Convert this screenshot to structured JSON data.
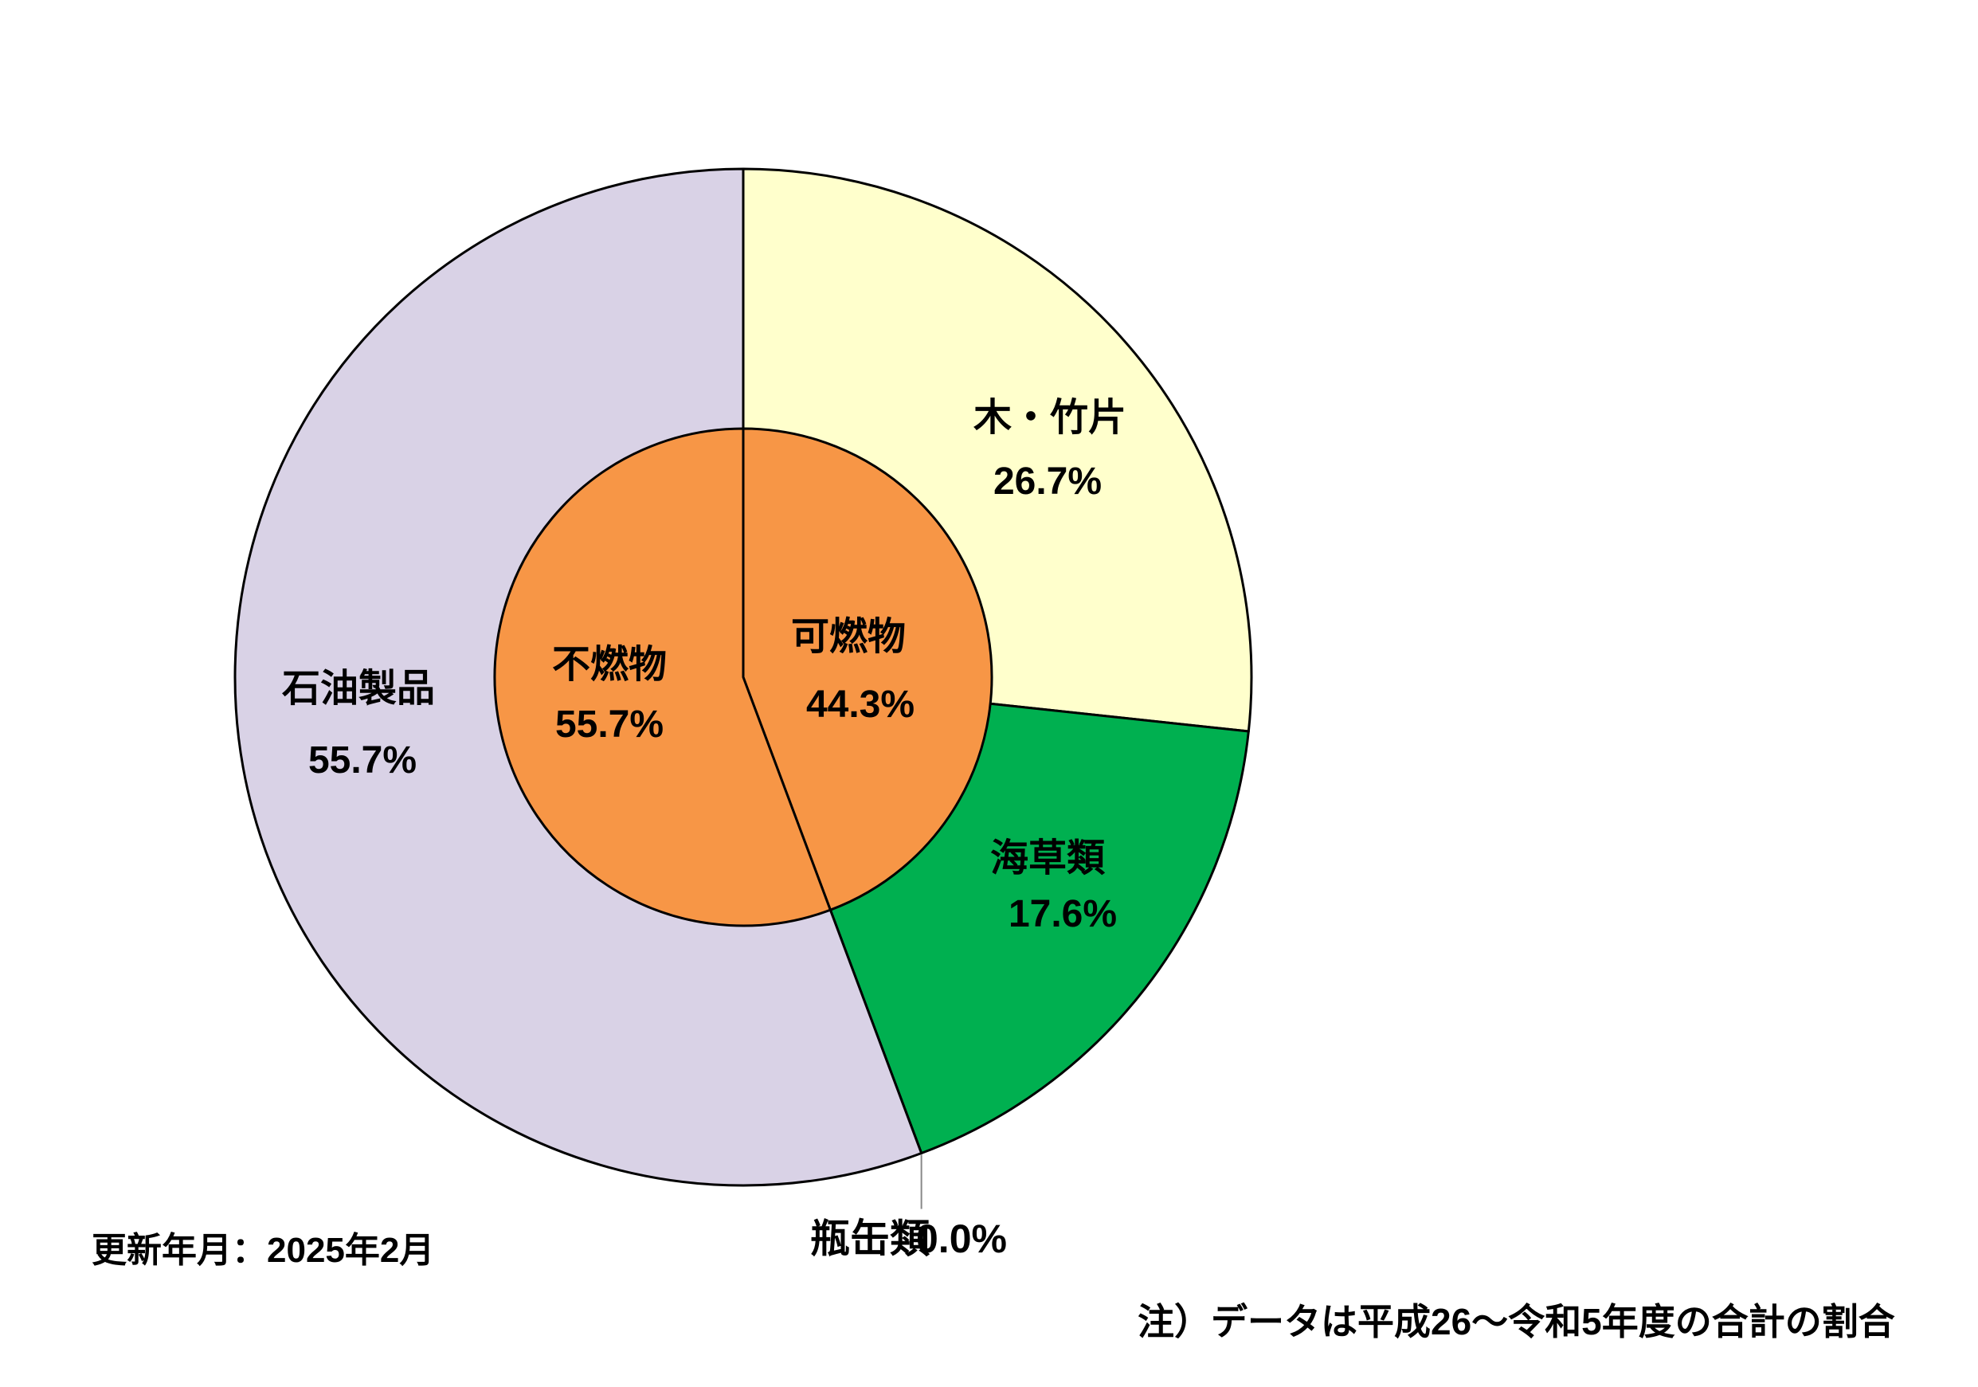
{
  "chart_data": {
    "type": "pie",
    "variant": "nested-donut",
    "inner": [
      {
        "label": "可燃物",
        "value": 44.3,
        "value_label": "44.3%",
        "color": "#F79646"
      },
      {
        "label": "不燃物",
        "value": 55.7,
        "value_label": "55.7%",
        "color": "#F79646"
      }
    ],
    "outer": [
      {
        "label": "木・竹片",
        "value": 26.7,
        "value_label": "26.7%",
        "color": "#FFFFCC"
      },
      {
        "label": "海草類",
        "value": 17.6,
        "value_label": "17.6%",
        "color": "#00B050"
      },
      {
        "label": "瓶缶類",
        "value": 0.0,
        "value_label": "0.0%",
        "color": "#FFFFFF"
      },
      {
        "label": "石油製品",
        "value": 55.7,
        "value_label": "55.7%",
        "color": "#D9D2E6"
      }
    ]
  },
  "footer": {
    "updated": "更新年月：2025年2月",
    "note": "注）データは平成26～令和5年度の合計の割合"
  }
}
